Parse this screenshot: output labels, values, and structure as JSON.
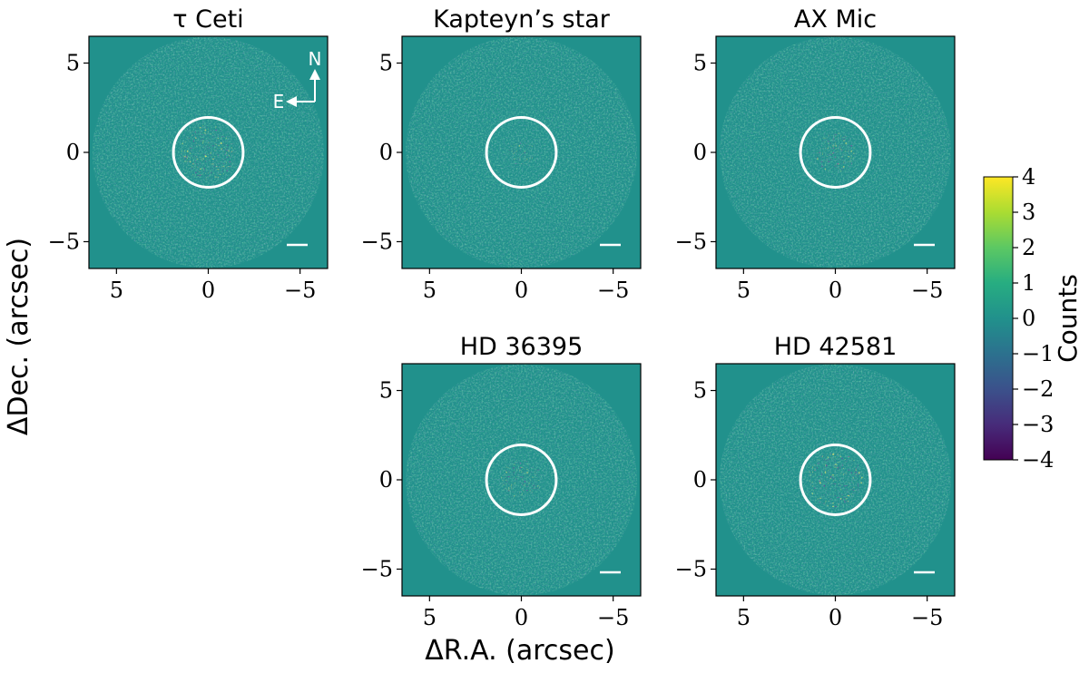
{
  "figure": {
    "xlabel": "ΔR.A. (arcsec)",
    "ylabel": "ΔDec. (arcsec)",
    "background_color": "#21918c"
  },
  "chart_data": [
    {
      "type": "heatmap",
      "title": "τ Ceti",
      "xlim": [
        6.5,
        -6.5
      ],
      "ylim": [
        -6.5,
        6.5
      ],
      "xticks": [
        5,
        0,
        -5
      ],
      "yticks": [
        5,
        0,
        -5
      ],
      "xtick_labels": [
        "5",
        "0",
        "−5"
      ],
      "ytick_labels": [
        "5",
        "0",
        "−5"
      ],
      "ring_radius": 1.9,
      "core_intensity": "high",
      "compass": {
        "north_label": "N",
        "east_label": "E"
      },
      "has_scale_bar": true
    },
    {
      "type": "heatmap",
      "title": "Kapteyn’s star",
      "xlim": [
        6.5,
        -6.5
      ],
      "ylim": [
        -6.5,
        6.5
      ],
      "xticks": [
        5,
        0,
        -5
      ],
      "yticks": [
        5,
        0,
        -5
      ],
      "xtick_labels": [
        "5",
        "0",
        "−5"
      ],
      "ytick_labels": [
        "5",
        "0",
        "−5"
      ],
      "ring_radius": 1.9,
      "core_intensity": "low",
      "has_scale_bar": true
    },
    {
      "type": "heatmap",
      "title": "AX Mic",
      "xlim": [
        6.5,
        -6.5
      ],
      "ylim": [
        -6.5,
        6.5
      ],
      "xticks": [
        5,
        0,
        -5
      ],
      "yticks": [
        5,
        0,
        -5
      ],
      "xtick_labels": [
        "5",
        "0",
        "−5"
      ],
      "ytick_labels": [
        "5",
        "0",
        "−5"
      ],
      "ring_radius": 1.9,
      "core_intensity": "medium",
      "has_scale_bar": true
    },
    {
      "type": "heatmap",
      "title": "HD 36395",
      "xlim": [
        6.5,
        -6.5
      ],
      "ylim": [
        -6.5,
        6.5
      ],
      "xticks": [
        5,
        0,
        -5
      ],
      "yticks": [
        5,
        0,
        -5
      ],
      "xtick_labels": [
        "5",
        "0",
        "−5"
      ],
      "ytick_labels": [
        "5",
        "0",
        "−5"
      ],
      "ring_radius": 1.9,
      "core_intensity": "medium",
      "has_scale_bar": true
    },
    {
      "type": "heatmap",
      "title": "HD 42581",
      "xlim": [
        6.5,
        -6.5
      ],
      "ylim": [
        -6.5,
        6.5
      ],
      "xticks": [
        5,
        0,
        -5
      ],
      "yticks": [
        5,
        0,
        -5
      ],
      "xtick_labels": [
        "5",
        "0",
        "−5"
      ],
      "ytick_labels": [
        "5",
        "0",
        "−5"
      ],
      "ring_radius": 1.9,
      "core_intensity": "high",
      "has_scale_bar": true
    }
  ],
  "colorbar": {
    "label": "Counts",
    "range": [
      -4,
      4
    ],
    "ticks": [
      4,
      3,
      2,
      1,
      0,
      -1,
      -2,
      -3,
      -4
    ],
    "tick_labels": [
      "4",
      "3",
      "2",
      "1",
      "0",
      "−1",
      "−2",
      "−3",
      "−4"
    ],
    "colors": [
      "#440154",
      "#472c7a",
      "#3b518b",
      "#2c718e",
      "#21918c",
      "#27ad81",
      "#5cc863",
      "#aadc32",
      "#fde725"
    ]
  }
}
